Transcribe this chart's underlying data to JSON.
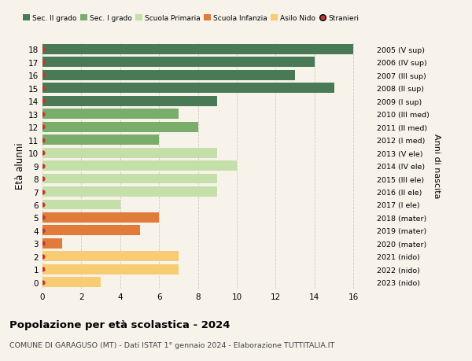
{
  "ages": [
    18,
    17,
    16,
    15,
    14,
    13,
    12,
    11,
    10,
    9,
    8,
    7,
    6,
    5,
    4,
    3,
    2,
    1,
    0
  ],
  "right_labels": [
    "2005 (V sup)",
    "2006 (IV sup)",
    "2007 (III sup)",
    "2008 (II sup)",
    "2009 (I sup)",
    "2010 (III med)",
    "2011 (II med)",
    "2012 (I med)",
    "2013 (V ele)",
    "2014 (IV ele)",
    "2015 (III ele)",
    "2016 (II ele)",
    "2017 (I ele)",
    "2018 (mater)",
    "2019 (mater)",
    "2020 (mater)",
    "2021 (nido)",
    "2022 (nido)",
    "2023 (nido)"
  ],
  "values": [
    16,
    14,
    13,
    15,
    9,
    7,
    8,
    6,
    9,
    10,
    9,
    9,
    4,
    6,
    5,
    1,
    7,
    7,
    3
  ],
  "colors": [
    "#4a7a55",
    "#4a7a55",
    "#4a7a55",
    "#4a7a55",
    "#4a7a55",
    "#7aac6a",
    "#7aac6a",
    "#7aac6a",
    "#c5dfa8",
    "#c5dfa8",
    "#c5dfa8",
    "#c5dfa8",
    "#c5dfa8",
    "#e07b39",
    "#e07b39",
    "#e07b39",
    "#f7cc72",
    "#f7cc72",
    "#f7cc72"
  ],
  "legend_labels": [
    "Sec. II grado",
    "Sec. I grado",
    "Scuola Primaria",
    "Scuola Infanzia",
    "Asilo Nido",
    "Stranieri"
  ],
  "legend_colors": [
    "#4a7a55",
    "#7aac6a",
    "#c5dfa8",
    "#e07b39",
    "#f7cc72",
    "#c0392b"
  ],
  "title": "Popolazione per età scolastica - 2024",
  "subtitle": "COMUNE DI GARAGUSO (MT) - Dati ISTAT 1° gennaio 2024 - Elaborazione TUTTITALIA.IT",
  "ylabel": "Età alunni",
  "right_ylabel": "Anni di nascita",
  "xlim": [
    0,
    17
  ],
  "ylim": [
    -0.5,
    18.5
  ],
  "xticks": [
    0,
    2,
    4,
    6,
    8,
    10,
    12,
    14,
    16
  ],
  "background_color": "#f7f3eb",
  "bar_height": 0.78,
  "grid_color": "#d0ccc4",
  "stranieri_color": "#c0392b"
}
